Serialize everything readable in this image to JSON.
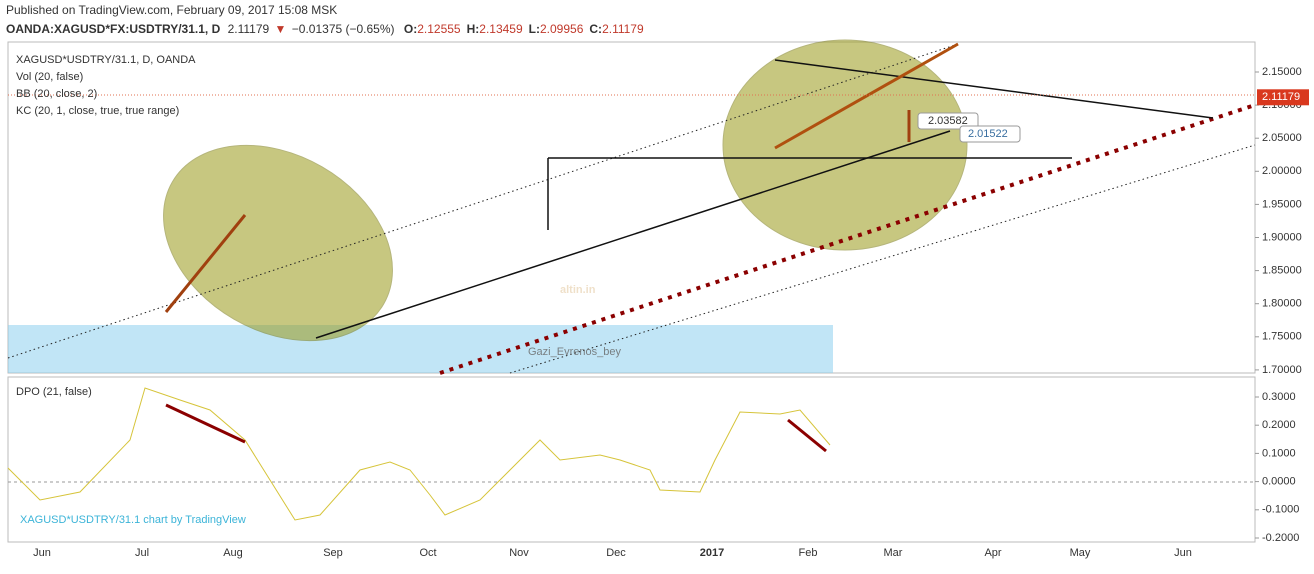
{
  "header": {
    "published": "Published on TradingView.com, February 09, 2017 15:08 MSK",
    "symbol": "OANDA:XAGUSD*FX:USDTRY/31.1, D",
    "price": "2.11179",
    "change": "−0.01375 (−0.65%)",
    "ohlc": [
      {
        "label": "O:",
        "value": "2.12555"
      },
      {
        "label": "H:",
        "value": "2.13459"
      },
      {
        "label": "L:",
        "value": "2.09956"
      },
      {
        "label": "C:",
        "value": "2.11179"
      }
    ]
  },
  "price_pane": {
    "title": "XAGUSD*USDTRY/31.1, D, OANDA",
    "indicators": [
      "Vol (20, false)",
      "BB (20, close, 2)",
      "KC (20, 1, close, true, true range)"
    ],
    "yticks": [
      {
        "value": 2.15,
        "label": "2.15000"
      },
      {
        "value": 2.1,
        "label": "2.10000"
      },
      {
        "value": 2.05,
        "label": "2.05000"
      },
      {
        "value": 2,
        "label": "2.00000"
      },
      {
        "value": 1.95,
        "label": "1.95000"
      },
      {
        "value": 1.9,
        "label": "1.90000"
      },
      {
        "value": 1.85,
        "label": "1.85000"
      },
      {
        "value": 1.8,
        "label": "1.80000"
      },
      {
        "value": 1.75,
        "label": "1.75000"
      },
      {
        "value": 1.7,
        "label": "1.70000"
      }
    ],
    "last_price": {
      "value": 2.11179,
      "label": "2.11179"
    },
    "annotations": [
      "2.03582",
      "2.01522"
    ],
    "watermark": [
      "altin.in",
      "Gazi_Evrenos_bey"
    ]
  },
  "dpo_pane": {
    "title": "DPO (21, false)",
    "yticks": [
      {
        "value": 0.3,
        "label": "0.3000"
      },
      {
        "value": 0.2,
        "label": "0.2000"
      },
      {
        "value": 0.1,
        "label": "0.1000"
      },
      {
        "value": 0,
        "label": "0.0000"
      },
      {
        "value": -0.1,
        "label": "-0.1000"
      },
      {
        "value": -0.2,
        "label": "-0.2000"
      }
    ],
    "caption": "XAGUSD*USDTRY/31.1 chart by TradingView"
  },
  "time_axis": [
    "Jun",
    "Jul",
    "Aug",
    "Sep",
    "Oct",
    "Nov",
    "Dec",
    "2017",
    "Feb",
    "Mar",
    "Apr",
    "May",
    "Jun"
  ]
}
